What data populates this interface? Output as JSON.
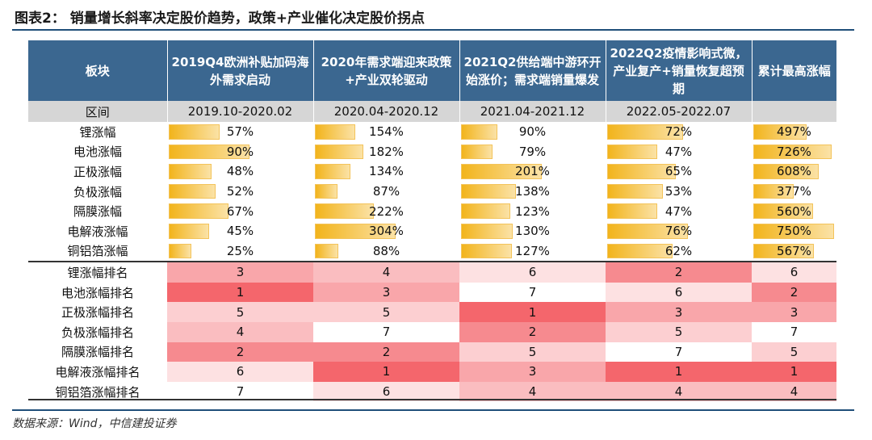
{
  "title": "图表2：   销量增长斜率决定股价趋势，政策+产业催化决定股价拐点",
  "source": "数据来源：Wind，中信建投证券",
  "colors": {
    "header_bg": "#3b6790",
    "range_bg": "#d6d6d6",
    "bar": "#f2b41c",
    "rank_colors": {
      "1": "#f4666c",
      "2": "#f68a8f",
      "3": "#f9a6aa",
      "4": "#fabdc0",
      "5": "#fccfd1",
      "6": "#fde1e2",
      "7": "#ffffff"
    }
  },
  "chart_data": {
    "type": "table",
    "header": {
      "block": "板块",
      "periods": [
        "2019Q4欧洲补贴加码海外需求启动",
        "2020年需求端迎来政策+产业双轮驱动",
        "2021Q2供给端中游环开始涨价；需求端销量爆发",
        "2022Q2疫情影响式微，产业复产+销量恢复超预期"
      ],
      "cumulative": "累计最高涨幅"
    },
    "range_label": "区间",
    "ranges": [
      "2019.10-2020.02",
      "2020.04-2020.12",
      "2021.04-2021.12",
      "2022.05-2022.07"
    ],
    "value_rows": [
      {
        "label": "锂涨幅",
        "values": [
          "57%",
          "154%",
          "90%",
          "72%"
        ],
        "cumulative": "497%"
      },
      {
        "label": "电池涨幅",
        "values": [
          "90%",
          "182%",
          "79%",
          "47%"
        ],
        "cumulative": "726%"
      },
      {
        "label": "正极涨幅",
        "values": [
          "48%",
          "134%",
          "201%",
          "65%"
        ],
        "cumulative": "608%"
      },
      {
        "label": "负极涨幅",
        "values": [
          "52%",
          "87%",
          "138%",
          "53%"
        ],
        "cumulative": "377%"
      },
      {
        "label": "隔膜涨幅",
        "values": [
          "67%",
          "222%",
          "123%",
          "47%"
        ],
        "cumulative": "560%"
      },
      {
        "label": "电解液涨幅",
        "values": [
          "45%",
          "304%",
          "130%",
          "76%"
        ],
        "cumulative": "750%"
      },
      {
        "label": "铜铝箔涨幅",
        "values": [
          "25%",
          "88%",
          "127%",
          "62%"
        ],
        "cumulative": "567%"
      }
    ],
    "rank_rows": [
      {
        "label": "锂涨幅排名",
        "ranks": [
          3,
          4,
          6,
          2,
          6
        ]
      },
      {
        "label": "电池涨幅排名",
        "ranks": [
          1,
          3,
          7,
          6,
          2
        ]
      },
      {
        "label": "正极涨幅排名",
        "ranks": [
          5,
          5,
          1,
          3,
          3
        ]
      },
      {
        "label": "负极涨幅排名",
        "ranks": [
          4,
          7,
          2,
          5,
          7
        ]
      },
      {
        "label": "隔膜涨幅排名",
        "ranks": [
          2,
          2,
          5,
          7,
          5
        ]
      },
      {
        "label": "电解液涨幅排名",
        "ranks": [
          6,
          1,
          3,
          1,
          1
        ]
      },
      {
        "label": "铜铝箔涨幅排名",
        "ranks": [
          7,
          6,
          4,
          4,
          4
        ]
      }
    ]
  }
}
